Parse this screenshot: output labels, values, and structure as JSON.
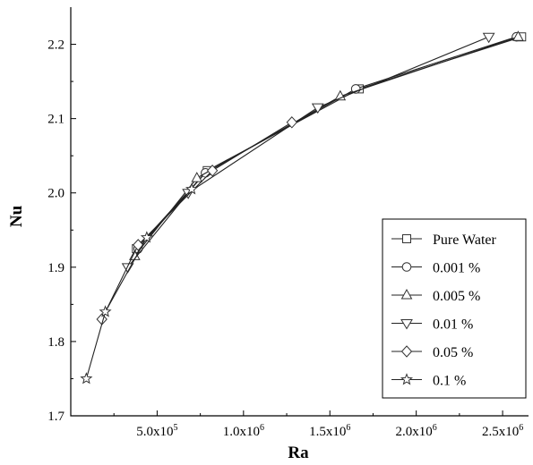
{
  "chart_data": {
    "type": "line",
    "title": "",
    "xlabel": "Ra",
    "ylabel": "Nu",
    "xlim": [
      0,
      2650000
    ],
    "ylim": [
      1.7,
      2.25
    ],
    "x_ticks": [
      {
        "value": 500000,
        "label": "5.0x10",
        "exp": "5"
      },
      {
        "value": 1000000,
        "label": "1.0x10",
        "exp": "6"
      },
      {
        "value": 1500000,
        "label": "1.5x10",
        "exp": "6"
      },
      {
        "value": 2000000,
        "label": "2.0x10",
        "exp": "6"
      },
      {
        "value": 2500000,
        "label": "2.5x10",
        "exp": "6"
      }
    ],
    "y_ticks": [
      1.7,
      1.8,
      1.9,
      2.0,
      2.1,
      2.2
    ],
    "y_tick_labels": [
      "1.7",
      "1.8",
      "1.9",
      "2.0",
      "2.1",
      "2.2"
    ],
    "legend_position": "bottom-right",
    "series": [
      {
        "name": "Pure Water",
        "marker": "square",
        "x": [
          380000,
          790000,
          1670000,
          2610000
        ],
        "y": [
          1.925,
          2.03,
          2.14,
          2.21
        ]
      },
      {
        "name": "0.001 %",
        "marker": "circle",
        "x": [
          390000,
          780000,
          1650000,
          2580000
        ],
        "y": [
          1.925,
          2.027,
          2.14,
          2.21
        ]
      },
      {
        "name": "0.005 %",
        "marker": "triangle-up",
        "x": [
          370000,
          730000,
          1560000,
          2590000
        ],
        "y": [
          1.915,
          2.02,
          2.13,
          2.21
        ]
      },
      {
        "name": "0.01 %",
        "marker": "triangle-down",
        "x": [
          330000,
          680000,
          1430000,
          2420000
        ],
        "y": [
          1.9,
          2.0,
          2.115,
          2.21
        ]
      },
      {
        "name": "0.05 %",
        "marker": "diamond",
        "x": [
          180000,
          390000,
          820000,
          1280000
        ],
        "y": [
          1.83,
          1.93,
          2.03,
          2.095
        ]
      },
      {
        "name": "0.1 %",
        "marker": "star",
        "x": [
          90000,
          200000,
          440000,
          700000
        ],
        "y": [
          1.75,
          1.84,
          1.94,
          2.005
        ]
      }
    ]
  }
}
